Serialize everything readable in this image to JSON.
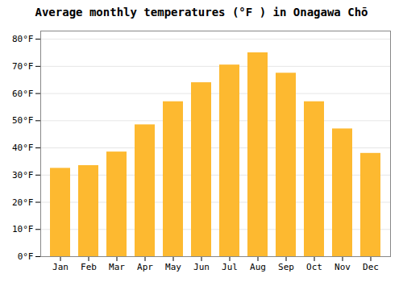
{
  "chart_data": {
    "type": "bar",
    "title": "Average monthly temperatures (°F ) in Onagawa Chō",
    "categories": [
      "Jan",
      "Feb",
      "Mar",
      "Apr",
      "May",
      "Jun",
      "Jul",
      "Aug",
      "Sep",
      "Oct",
      "Nov",
      "Dec"
    ],
    "values": [
      32.5,
      33.5,
      38.5,
      48.5,
      57.0,
      64.0,
      70.5,
      75.0,
      67.5,
      57.0,
      47.0,
      38.0
    ],
    "color": "#FDB930",
    "ylim": [
      0,
      83
    ],
    "yticks": [
      {
        "value": 0,
        "label": "0°F"
      },
      {
        "value": 10,
        "label": "10°F"
      },
      {
        "value": 20,
        "label": "20°F"
      },
      {
        "value": 30,
        "label": "30°F"
      },
      {
        "value": 40,
        "label": "40°F"
      },
      {
        "value": 50,
        "label": "50°F"
      },
      {
        "value": 60,
        "label": "60°F"
      },
      {
        "value": 70,
        "label": "70°F"
      },
      {
        "value": 80,
        "label": "80°F"
      }
    ],
    "grid": true
  }
}
